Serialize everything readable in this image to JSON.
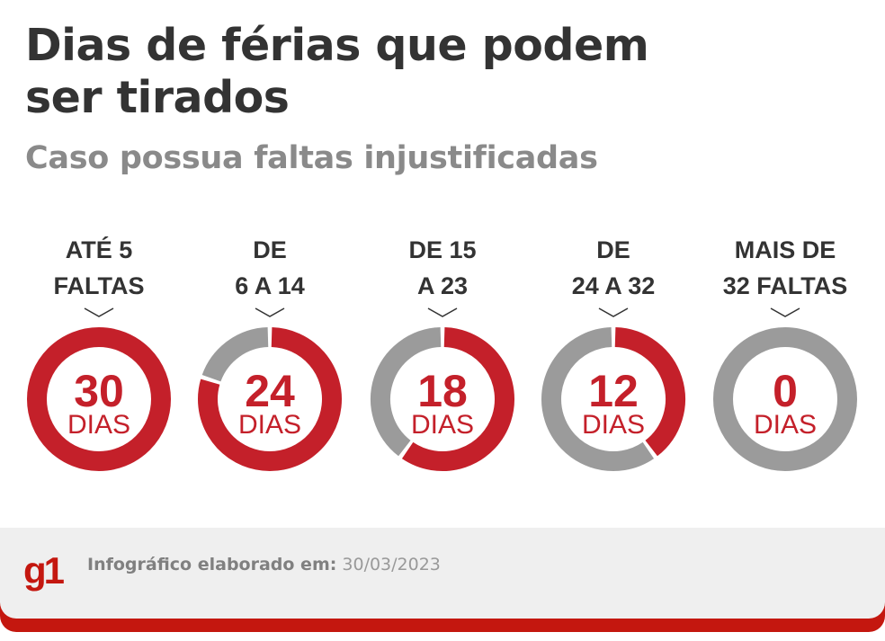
{
  "header": {
    "title_line1": "Dias de férias que podem",
    "title_line2": "ser tirados",
    "subtitle": "Caso possua faltas injustificadas"
  },
  "chart_data": {
    "type": "pie",
    "style": "donut",
    "max_value": 30,
    "unit": "DIAS",
    "colors": {
      "filled": "#c4202a",
      "remaining": "#9b9b9b"
    },
    "items": [
      {
        "label_line1": "ATÉ 5",
        "label_line2": "FALTAS",
        "value": 30,
        "value_text": "30"
      },
      {
        "label_line1": "DE",
        "label_line2": "6 A 14",
        "value": 24,
        "value_text": "24"
      },
      {
        "label_line1": "DE 15",
        "label_line2": "A 23",
        "value": 18,
        "value_text": "18"
      },
      {
        "label_line1": "DE",
        "label_line2": "24 A 32",
        "value": 12,
        "value_text": "12"
      },
      {
        "label_line1": "MAIS DE",
        "label_line2": "32 FALTAS",
        "value": 0,
        "value_text": "0"
      }
    ]
  },
  "footer": {
    "logo": "g1",
    "credit_label": "Infográfico elaborado em:",
    "credit_date": "30/03/2023"
  }
}
